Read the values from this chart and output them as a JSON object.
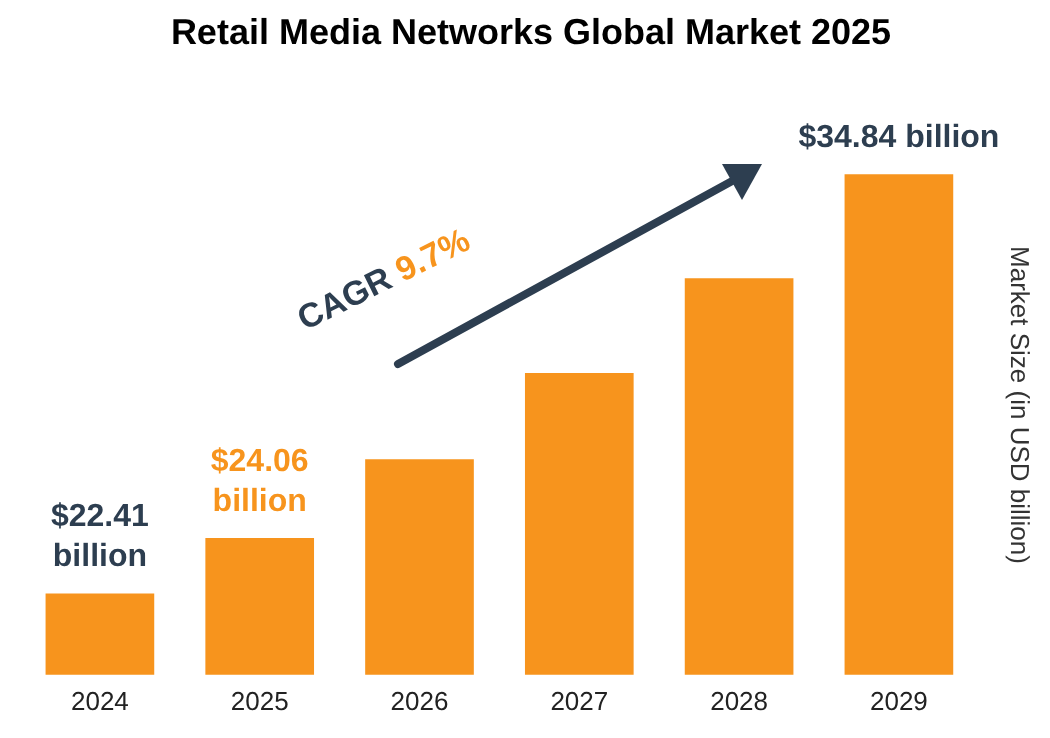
{
  "chart_data": {
    "type": "bar",
    "title": "Retail Media Networks Global Market 2025",
    "ylabel": "Market Size (in USD billion)",
    "categories": [
      "2024",
      "2025",
      "2026",
      "2027",
      "2028",
      "2029"
    ],
    "values": [
      22.41,
      24.06,
      26.39,
      28.95,
      31.76,
      34.84
    ],
    "value_labels": [
      "$22.41 billion",
      "$24.06 billion",
      null,
      null,
      null,
      "$34.84 billion"
    ],
    "color": "#f7941d",
    "tick_labels": "x",
    "grid": false,
    "legend": false,
    "annotations": [
      "CAGR 9.7%"
    ]
  }
}
